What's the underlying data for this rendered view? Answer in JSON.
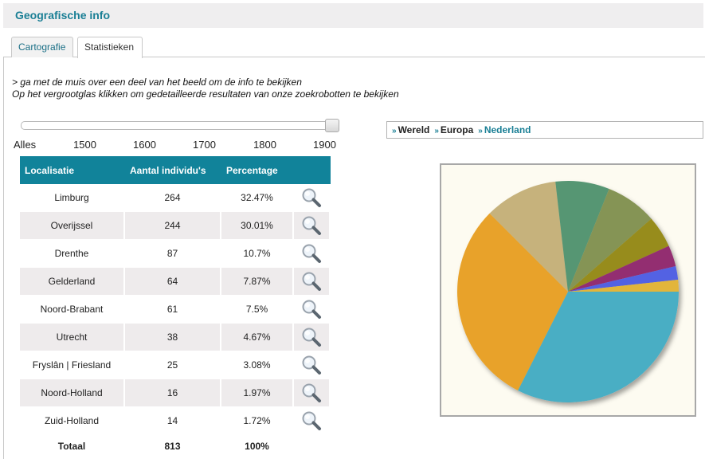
{
  "header": {
    "title": "Geografische info"
  },
  "tabs": [
    {
      "label": "Cartografie",
      "active": false
    },
    {
      "label": "Statistieken",
      "active": true
    }
  ],
  "instructions": {
    "line1": "> ga met de muis over een deel van het beeld om de info te bekijken",
    "line2": "Op het vergrootglas klikken om gedetailleerde resultaten van onze zoekrobotten te bekijken"
  },
  "slider": {
    "labels": [
      "Alles",
      "1500",
      "1600",
      "1700",
      "1800",
      "1900"
    ],
    "selected": "1900"
  },
  "table": {
    "headers": [
      "Localisatie",
      "Aantal individu's",
      "Percentage"
    ],
    "rows": [
      {
        "name": "Limburg",
        "count": "264",
        "pct": "32.47%"
      },
      {
        "name": "Overijssel",
        "count": "244",
        "pct": "30.01%"
      },
      {
        "name": "Drenthe",
        "count": "87",
        "pct": "10.7%"
      },
      {
        "name": "Gelderland",
        "count": "64",
        "pct": "7.87%"
      },
      {
        "name": "Noord-Brabant",
        "count": "61",
        "pct": "7.5%"
      },
      {
        "name": "Utrecht",
        "count": "38",
        "pct": "4.67%"
      },
      {
        "name": "Fryslân | Friesland",
        "count": "25",
        "pct": "3.08%"
      },
      {
        "name": "Noord-Holland",
        "count": "16",
        "pct": "1.97%"
      },
      {
        "name": "Zuid-Holland",
        "count": "14",
        "pct": "1.72%"
      }
    ],
    "total": {
      "label": "Totaal",
      "count": "813",
      "pct": "100%"
    }
  },
  "breadcrumb": [
    "Wereld",
    "Europa",
    "Nederland"
  ],
  "chart_data": {
    "type": "pie",
    "slices": [
      {
        "value": 264,
        "color": "#4aaec4"
      },
      {
        "value": 244,
        "color": "#e8a22a"
      },
      {
        "value": 87,
        "color": "#c6b27c"
      },
      {
        "value": 64,
        "color": "#579673"
      },
      {
        "value": 61,
        "color": "#859454"
      },
      {
        "value": 38,
        "color": "#978c1a"
      },
      {
        "value": 25,
        "color": "#932e71"
      },
      {
        "value": 16,
        "color": "#5262e3"
      },
      {
        "value": 14,
        "color": "#e2b53b"
      }
    ]
  },
  "colors": {
    "accent": "#11839a",
    "row_alt": "#eeebec",
    "link": "#1a7f95"
  },
  "icons": {
    "zoom": "magnifier-icon",
    "crumb": "double-chevron-right-icon"
  }
}
